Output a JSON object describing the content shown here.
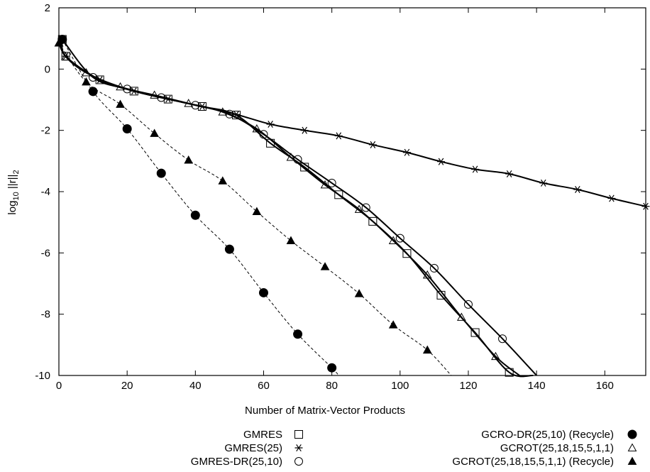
{
  "chart_data": {
    "type": "line",
    "title": "",
    "xlabel": "Number of Matrix-Vector Products",
    "ylabel_main": "log",
    "ylabel_sub": "10",
    "ylabel_rest": " ||r||",
    "ylabel_sub2": "2",
    "xlim": [
      0,
      172
    ],
    "ylim": [
      -10,
      2
    ],
    "xticks": [
      "0",
      "20",
      "40",
      "60",
      "80",
      "100",
      "120",
      "140",
      "160"
    ],
    "xtick_values": [
      0,
      20,
      40,
      60,
      80,
      100,
      120,
      140,
      160
    ],
    "yticks": [
      "2",
      "0",
      "-2",
      "-4",
      "-6",
      "-8",
      "-10"
    ],
    "ytick_values": [
      2,
      0,
      -2,
      -4,
      -6,
      -8,
      -10
    ],
    "grid": false,
    "legend_position": "bottom",
    "series": [
      {
        "name": "GMRES",
        "marker": "square",
        "line": "solid",
        "x": [
          1,
          2,
          12,
          22,
          32,
          42,
          52,
          62,
          72,
          82,
          92,
          102,
          112,
          122,
          132,
          139
        ],
        "y": [
          0.97,
          0.42,
          -0.35,
          -0.72,
          -0.98,
          -1.22,
          -1.5,
          -2.42,
          -3.2,
          -4.1,
          -4.97,
          -6.02,
          -7.38,
          -8.6,
          -9.9,
          -10
        ]
      },
      {
        "name": "GMRES(25)",
        "marker": "asterisk",
        "line": "solid",
        "x": [
          1,
          2,
          12,
          22,
          32,
          42,
          52,
          62,
          72,
          82,
          92,
          102,
          112,
          122,
          132,
          142,
          152,
          162,
          172
        ],
        "y": [
          0.97,
          0.42,
          -0.35,
          -0.72,
          -0.98,
          -1.22,
          -1.48,
          -1.8,
          -2.0,
          -2.18,
          -2.47,
          -2.72,
          -3.02,
          -3.27,
          -3.42,
          -3.72,
          -3.93,
          -4.22,
          -4.48
        ]
      },
      {
        "name": "GMRES-DR(25,10)",
        "marker": "circle",
        "line": "solid",
        "x": [
          1,
          10,
          20,
          30,
          40,
          50,
          60,
          70,
          80,
          90,
          100,
          110,
          120,
          130,
          140
        ],
        "y": [
          0.97,
          -0.27,
          -0.65,
          -0.93,
          -1.18,
          -1.47,
          -2.13,
          -2.95,
          -3.72,
          -4.52,
          -5.52,
          -6.5,
          -7.68,
          -8.8,
          -10
        ]
      },
      {
        "name": "GCRO-DR(25,10) (Recycle)",
        "marker": "filled-circle",
        "line": "dashed",
        "x": [
          1,
          10,
          20,
          30,
          40,
          50,
          60,
          70,
          80,
          82
        ],
        "y": [
          0.97,
          -0.73,
          -1.95,
          -3.4,
          -4.77,
          -5.88,
          -7.3,
          -8.65,
          -9.75,
          -10
        ]
      },
      {
        "name": "GCROT(25,18,15,5,1,1)",
        "marker": "triangle",
        "line": "solid",
        "x": [
          0,
          2,
          8,
          18,
          28,
          38,
          48,
          58,
          68,
          78,
          88,
          98,
          108,
          118,
          128,
          135
        ],
        "y": [
          0.85,
          0.4,
          -0.12,
          -0.58,
          -0.85,
          -1.12,
          -1.4,
          -1.95,
          -2.88,
          -3.78,
          -4.58,
          -5.6,
          -6.72,
          -8.1,
          -9.38,
          -10
        ]
      },
      {
        "name": "GCROT(25,18,15,5,1,1) (Recycle)",
        "marker": "filled-triangle",
        "line": "dashed",
        "x": [
          0,
          8,
          18,
          28,
          38,
          48,
          58,
          68,
          78,
          88,
          98,
          108,
          115
        ],
        "y": [
          0.85,
          -0.42,
          -1.15,
          -2.1,
          -2.97,
          -3.65,
          -4.65,
          -5.6,
          -6.45,
          -7.33,
          -8.35,
          -9.17,
          -10
        ]
      }
    ]
  }
}
